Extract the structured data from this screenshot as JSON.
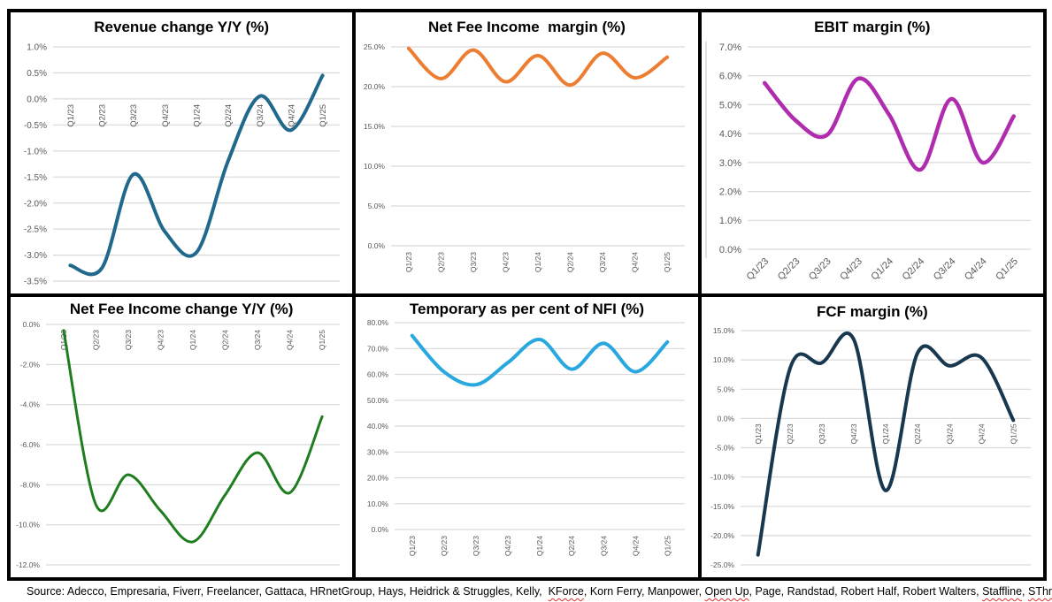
{
  "chart_data": [
    {
      "type": "line",
      "title": "Revenue change Y/Y (%)",
      "categories": [
        "Q1/23",
        "Q2/23",
        "Q3/23",
        "Q4/23",
        "Q1/24",
        "Q2/24",
        "Q3/24",
        "Q4/24",
        "Q1/25"
      ],
      "values": [
        -3.2,
        -3.25,
        -1.45,
        -2.55,
        -2.95,
        -1.2,
        0.05,
        -0.6,
        0.45
      ],
      "ylim": [
        -3.5,
        1.0
      ],
      "ystep": 0.5,
      "ytick_suffix": "%",
      "color": "#20698C",
      "stroke_width": 4,
      "smooth": true,
      "grid": true,
      "xlabels_position": "zero-line",
      "xlabel_rotation": 90,
      "axis_line": false
    },
    {
      "type": "line",
      "title": "Net Fee Income  margin (%)",
      "categories": [
        "Q1/23",
        "Q2/23",
        "Q3/23",
        "Q4/23",
        "Q1/24",
        "Q2/24",
        "Q3/24",
        "Q4/24",
        "Q1/25"
      ],
      "values": [
        24.8,
        21.0,
        24.6,
        20.6,
        23.9,
        20.2,
        24.2,
        21.1,
        23.7
      ],
      "ylim": [
        0.0,
        25.0
      ],
      "ystep": 5.0,
      "ytick_suffix": "%",
      "color": "#ED7D31",
      "stroke_width": 4,
      "smooth": true,
      "grid": true,
      "xlabels_position": "bottom",
      "xlabel_rotation": 90,
      "axis_line": false
    },
    {
      "type": "line",
      "title": "EBIT margin (%)",
      "categories": [
        "Q1/23",
        "Q2/23",
        "Q3/23",
        "Q4/23",
        "Q1/24",
        "Q2/24",
        "Q3/24",
        "Q4/24",
        "Q1/25"
      ],
      "values": [
        5.75,
        4.45,
        3.95,
        5.9,
        4.65,
        2.75,
        5.2,
        3.0,
        4.6
      ],
      "ylim": [
        0.0,
        7.0
      ],
      "ystep": 1.0,
      "ytick_suffix": "%",
      "color": "#AF2CAF",
      "stroke_width": 4.5,
      "smooth": true,
      "grid": true,
      "xlabels_position": "bottom-45",
      "xlabel_rotation": 45,
      "axis_line": true
    },
    {
      "type": "line",
      "title": "Net Fee Income change Y/Y (%)",
      "categories": [
        "Q1/23",
        "Q2/23",
        "Q3/23",
        "Q4/23",
        "Q1/24",
        "Q2/24",
        "Q3/24",
        "Q4/24",
        "Q1/25"
      ],
      "values": [
        -0.3,
        -9.0,
        -7.5,
        -9.3,
        -10.85,
        -8.5,
        -6.4,
        -8.4,
        -4.6
      ],
      "ylim": [
        -12.0,
        0.0
      ],
      "ystep": 2.0,
      "ytick_suffix": "%",
      "color": "#1E7D1E",
      "stroke_width": 3,
      "smooth": true,
      "grid": true,
      "xlabels_position": "zero-line",
      "xlabel_rotation": 90,
      "axis_line": false
    },
    {
      "type": "line",
      "title": "Temporary as per cent of NFI (%)",
      "categories": [
        "Q1/23",
        "Q2/23",
        "Q3/23",
        "Q4/23",
        "Q1/24",
        "Q2/24",
        "Q3/24",
        "Q4/24",
        "Q1/25"
      ],
      "values": [
        75.0,
        61.0,
        56.0,
        64.5,
        73.5,
        62.0,
        72.0,
        61.0,
        72.5
      ],
      "ylim": [
        0.0,
        80.0
      ],
      "ystep": 10.0,
      "ytick_suffix": "%",
      "color": "#29A8DF",
      "stroke_width": 4,
      "smooth": true,
      "grid": true,
      "xlabels_position": "bottom",
      "xlabel_rotation": 90,
      "axis_line": false
    },
    {
      "type": "line",
      "title": "FCF margin (%)",
      "categories": [
        "Q1/23",
        "Q2/23",
        "Q3/23",
        "Q4/23",
        "Q1/24",
        "Q2/24",
        "Q3/24",
        "Q4/24",
        "Q1/25"
      ],
      "values": [
        -23.3,
        8.5,
        9.5,
        13.5,
        -12.3,
        11.2,
        9.0,
        10.4,
        -0.3
      ],
      "ylim": [
        -25.0,
        15.0
      ],
      "ystep": 5.0,
      "ytick_suffix": "%",
      "color": "#17384E",
      "stroke_width": 4,
      "smooth": true,
      "grid": true,
      "xlabels_position": "zero-line",
      "xlabel_rotation": 90,
      "axis_line": false
    }
  ],
  "source": {
    "segments": [
      {
        "text": "Source: Adecco, Empresaria, Fiverr, Freelancer, Gattaca, HRnetGroup, Hays, Heidrick & Struggles, Kelly,  ",
        "misspelled": false
      },
      {
        "text": "KForce",
        "misspelled": true
      },
      {
        "text": ", Korn Ferry, Manpower, ",
        "misspelled": false
      },
      {
        "text": "Open Up",
        "misspelled": true
      },
      {
        "text": ", Page, Randstad, Robert Half, Robert Walters, ",
        "misspelled": false
      },
      {
        "text": "Staffline",
        "misspelled": true
      },
      {
        "text": ", ",
        "misspelled": false
      },
      {
        "text": "SThree",
        "misspelled": true
      }
    ]
  },
  "style_tokens": {
    "grid_color": "#D9D9D9",
    "tick_label_color": "#595959",
    "border_color": "#000000",
    "spellcheck_color": "#E03030"
  }
}
